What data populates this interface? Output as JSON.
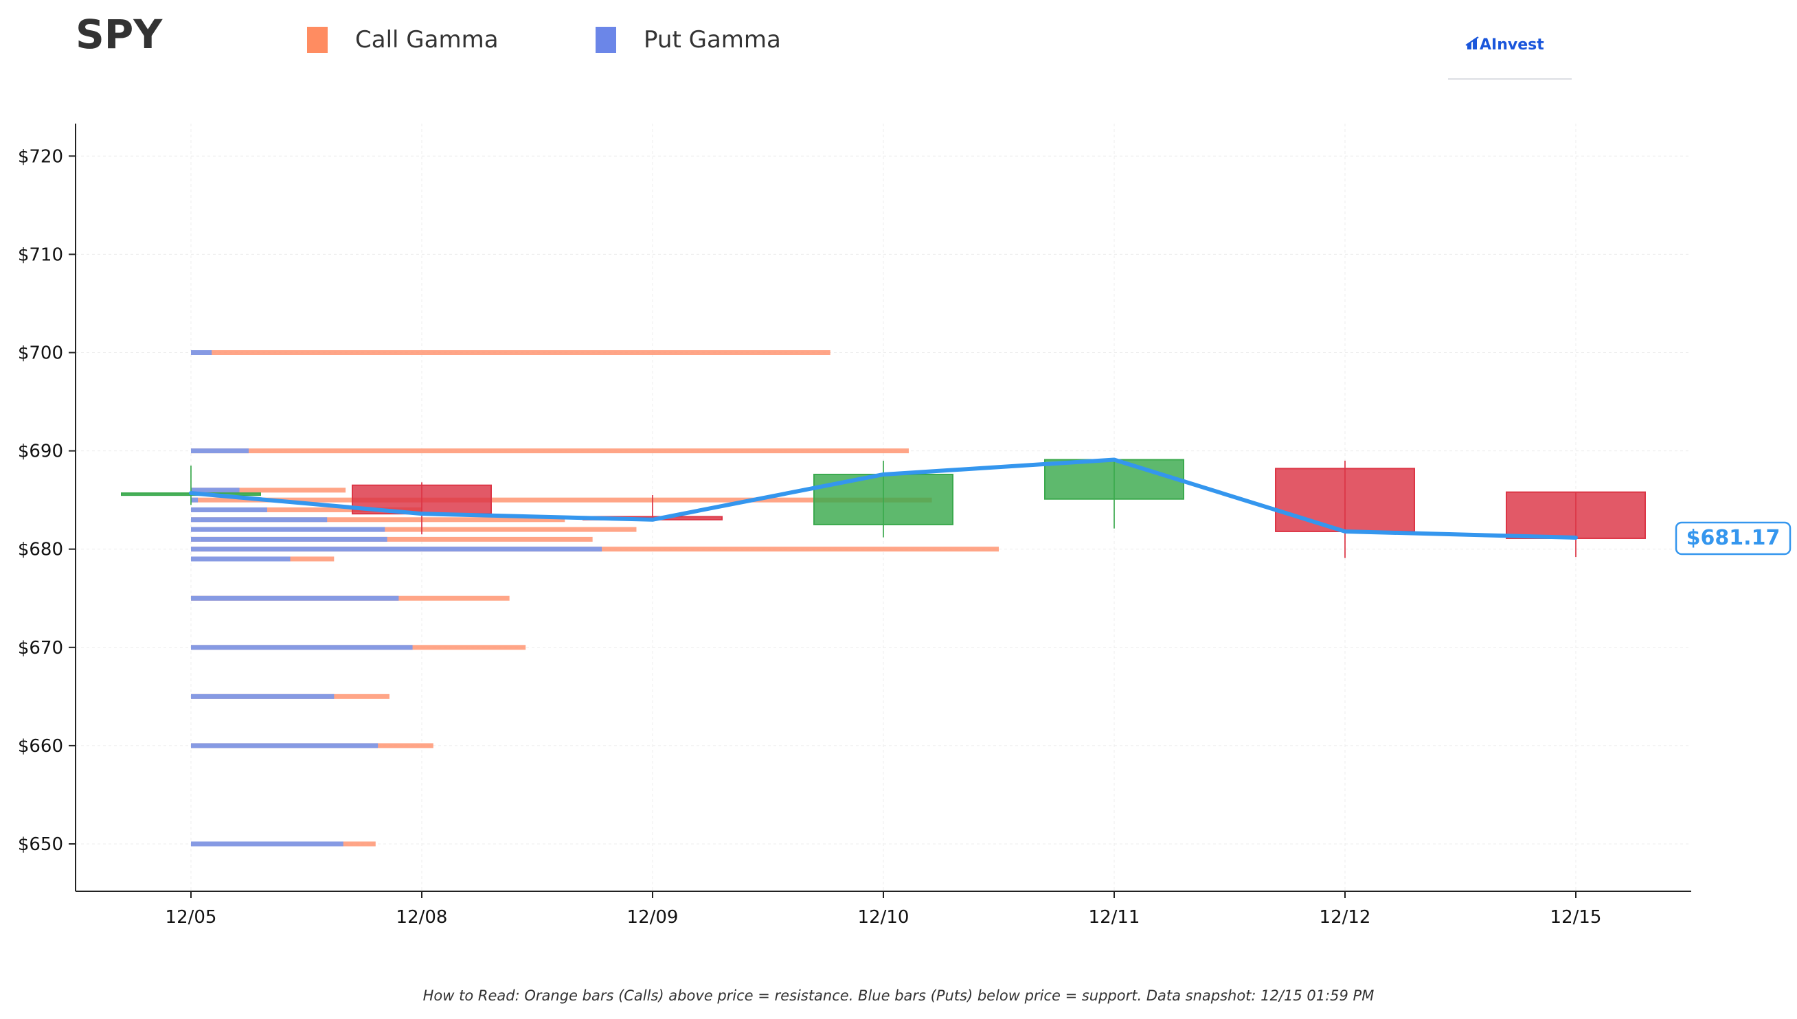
{
  "ticker": "SPY",
  "legend": {
    "call_label": "Call Gamma",
    "put_label": "Put Gamma",
    "call_color": "#ff8c61",
    "put_color": "#6b86e8"
  },
  "logo": {
    "text": "AInvest",
    "color": "#1a56db"
  },
  "footnote": "How to Read: Orange bars (Calls) above price = resistance. Blue bars (Puts) below price = support. Data snapshot: 12/15 01:59 PM",
  "price_badge": "$681.17",
  "colors": {
    "up": "#3aa94d",
    "down": "#dc3545",
    "price_line": "#3496ee",
    "call_bar": "#ff9b7a",
    "put_bar": "#7f99e8"
  },
  "chart_data": {
    "type": "candlestick",
    "x_categories": [
      "12/05",
      "12/08",
      "12/09",
      "12/10",
      "12/11",
      "12/12",
      "12/15"
    ],
    "y_tick_labels": [
      "$650",
      "$660",
      "$670",
      "$680",
      "$690",
      "$700",
      "$710",
      "$720"
    ],
    "y_ticks": [
      650,
      660,
      670,
      680,
      690,
      700,
      710,
      720
    ],
    "ylim": [
      645,
      723
    ],
    "grid": true,
    "legend_position": "top-left",
    "candles": [
      {
        "date": "12/05",
        "open": 685.5,
        "high": 688.5,
        "low": 684.5,
        "close": 685.7
      },
      {
        "date": "12/08",
        "open": 686.5,
        "high": 686.8,
        "low": 681.5,
        "close": 683.6
      },
      {
        "date": "12/09",
        "open": 683.3,
        "high": 685.5,
        "low": 682.9,
        "close": 683.0
      },
      {
        "date": "12/10",
        "open": 682.5,
        "high": 689.0,
        "low": 681.2,
        "close": 687.6
      },
      {
        "date": "12/11",
        "open": 685.1,
        "high": 689.1,
        "low": 682.1,
        "close": 689.1
      },
      {
        "date": "12/12",
        "open": 688.2,
        "high": 689.0,
        "low": 679.1,
        "close": 681.8
      },
      {
        "date": "12/15",
        "open": 685.8,
        "high": 685.8,
        "low": 679.2,
        "close": 681.1
      }
    ],
    "price_line": [
      685.7,
      683.6,
      683.0,
      687.6,
      689.1,
      681.8,
      681.17
    ],
    "gamma_units": "relative (x-axis category units from 12/05)",
    "gamma_levels": [
      {
        "strike": 700,
        "call": 2.77,
        "put": 0.09
      },
      {
        "strike": 690,
        "call": 3.11,
        "put": 0.25
      },
      {
        "strike": 686,
        "call": 0.67,
        "put": 0.21
      },
      {
        "strike": 685,
        "call": 3.21,
        "put": 0.03
      },
      {
        "strike": 684,
        "call": 1.0,
        "put": 0.33
      },
      {
        "strike": 683,
        "call": 1.62,
        "put": 0.59
      },
      {
        "strike": 682,
        "call": 1.93,
        "put": 0.84
      },
      {
        "strike": 681,
        "call": 1.74,
        "put": 0.85
      },
      {
        "strike": 680,
        "call": 3.5,
        "put": 1.78
      },
      {
        "strike": 679,
        "call": 0.62,
        "put": 0.43
      },
      {
        "strike": 675,
        "call": 1.38,
        "put": 0.9
      },
      {
        "strike": 670,
        "call": 1.45,
        "put": 0.96
      },
      {
        "strike": 665,
        "call": 0.86,
        "put": 0.62
      },
      {
        "strike": 660,
        "call": 1.05,
        "put": 0.81
      },
      {
        "strike": 650,
        "call": 0.8,
        "put": 0.66
      }
    ]
  }
}
